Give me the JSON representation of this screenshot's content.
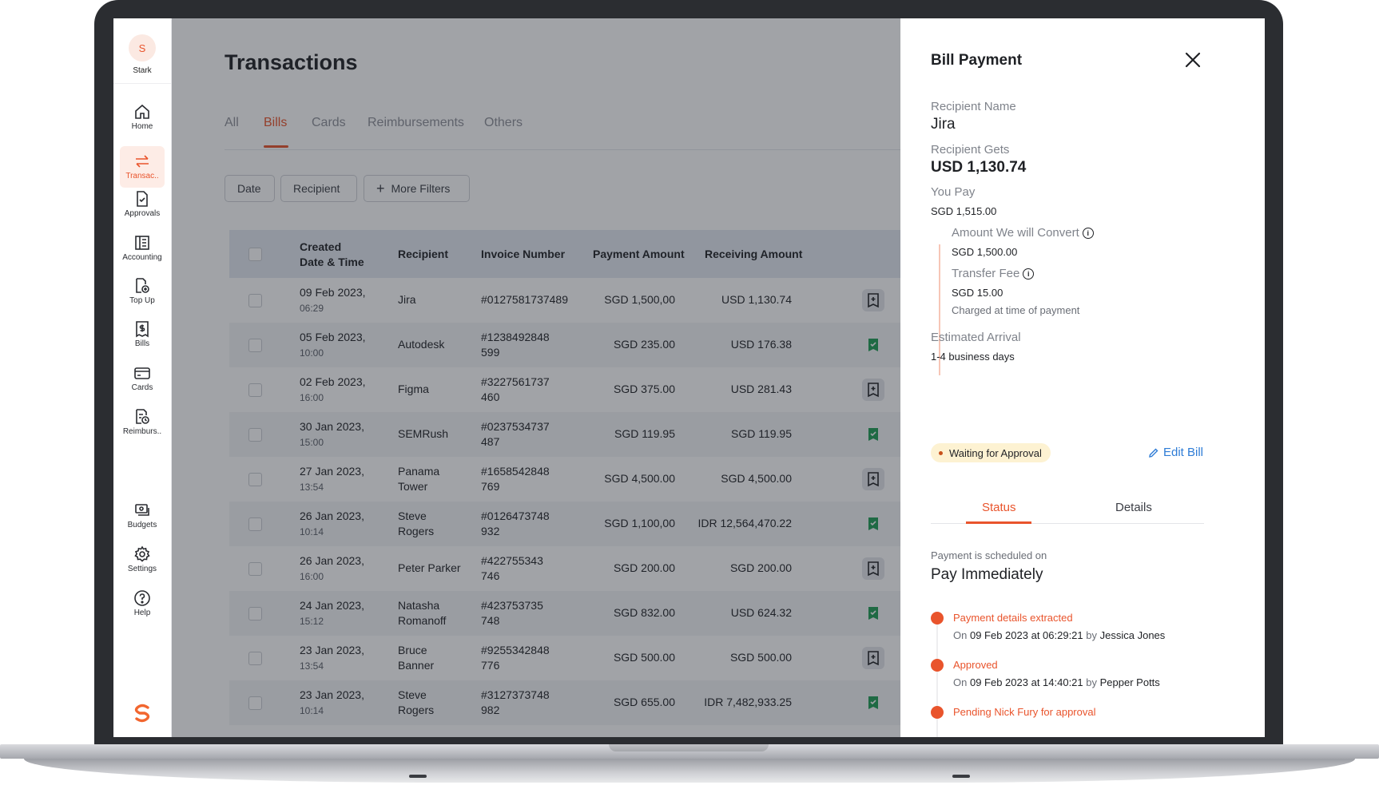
{
  "org": {
    "initial": "S",
    "name": "Stark"
  },
  "sidebar": {
    "items": [
      {
        "label": "Home",
        "icon": "home-icon"
      },
      {
        "label": "Transac..",
        "icon": "transfer-arrows-icon",
        "active": true
      },
      {
        "label": "Approvals",
        "icon": "approval-document-icon"
      },
      {
        "label": "Accounting",
        "icon": "ledger-icon"
      },
      {
        "label": "Top Up",
        "icon": "top-up-icon"
      },
      {
        "label": "Bills",
        "icon": "bill-icon"
      },
      {
        "label": "Cards",
        "icon": "card-icon"
      },
      {
        "label": "Reimburs..",
        "icon": "reimbursement-icon"
      }
    ],
    "bottom_items": [
      {
        "label": "Budgets",
        "icon": "budget-icon"
      },
      {
        "label": "Settings",
        "icon": "gear-icon"
      },
      {
        "label": "Help",
        "icon": "help-icon"
      }
    ]
  },
  "page": {
    "title": "Transactions"
  },
  "tabs": [
    {
      "label": "All"
    },
    {
      "label": "Bills",
      "active": true
    },
    {
      "label": "Cards"
    },
    {
      "label": "Reimbursements"
    },
    {
      "label": "Others"
    }
  ],
  "filters": {
    "date": "Date",
    "recipient": "Recipient",
    "more": "More Filters"
  },
  "table": {
    "headers": {
      "created_line1": "Created",
      "created_line2": "Date & Time",
      "recipient": "Recipient",
      "invoice": "Invoice Number",
      "payment": "Payment Amount",
      "receiving": "Receiving Amount"
    },
    "rows": [
      {
        "date": "09 Feb 2023,",
        "time": "06:29",
        "recipient": [
          "Jira"
        ],
        "invoice": [
          "#0127581737489"
        ],
        "payment": "SGD 1,500,00",
        "receiving": "USD 1,130.74",
        "status": "pending"
      },
      {
        "date": "05 Feb 2023,",
        "time": "10:00",
        "recipient": [
          "Autodesk"
        ],
        "invoice": [
          "#1238492848",
          "599"
        ],
        "payment": "SGD 235.00",
        "receiving": "USD 176.38",
        "status": "approved"
      },
      {
        "date": "02 Feb 2023,",
        "time": "16:00",
        "recipient": [
          "Figma"
        ],
        "invoice": [
          "#3227561737",
          "460"
        ],
        "payment": "SGD 375.00",
        "receiving": "USD 281.43",
        "status": "pending"
      },
      {
        "date": "30 Jan 2023,",
        "time": "15:00",
        "recipient": [
          "SEMRush"
        ],
        "invoice": [
          "#0237534737",
          "487"
        ],
        "payment": "SGD 119.95",
        "receiving": "SGD 119.95",
        "status": "approved"
      },
      {
        "date": "27 Jan 2023,",
        "time": "13:54",
        "recipient": [
          "Panama",
          "Tower"
        ],
        "invoice": [
          "#1658542848",
          "769"
        ],
        "payment": "SGD 4,500.00",
        "receiving": "SGD 4,500.00",
        "status": "pending"
      },
      {
        "date": "26 Jan 2023,",
        "time": "10:14",
        "recipient": [
          "Steve",
          "Rogers"
        ],
        "invoice": [
          "#0126473748",
          "932"
        ],
        "payment": "SGD 1,100,00",
        "receiving": "IDR 12,564,470.22",
        "status": "approved"
      },
      {
        "date": "26 Jan 2023,",
        "time": "16:00",
        "recipient": [
          "Peter Parker"
        ],
        "invoice": [
          "#422755343",
          "746"
        ],
        "payment": "SGD 200.00",
        "receiving": "SGD 200.00",
        "status": "pending"
      },
      {
        "date": "24 Jan 2023,",
        "time": "15:12",
        "recipient": [
          "Natasha",
          "Romanoff"
        ],
        "invoice": [
          "#423753735",
          "748"
        ],
        "payment": "SGD 832.00",
        "receiving": "USD 624.32",
        "status": "approved"
      },
      {
        "date": "23 Jan 2023,",
        "time": "13:54",
        "recipient": [
          "Bruce",
          "Banner"
        ],
        "invoice": [
          "#9255342848",
          "776"
        ],
        "payment": "SGD 500.00",
        "receiving": "SGD 500.00",
        "status": "pending"
      },
      {
        "date": "23 Jan 2023,",
        "time": "10:14",
        "recipient": [
          "Steve",
          "Rogers"
        ],
        "invoice": [
          "#3127373748",
          "982"
        ],
        "payment": "SGD 655.00",
        "receiving": "IDR 7,482,933.25",
        "status": "approved"
      }
    ]
  },
  "panel": {
    "title": "Bill Payment",
    "recipient_name_label": "Recipient Name",
    "recipient_name": "Jira",
    "recipient_gets_label": "Recipient Gets",
    "recipient_gets": "USD 1,130.74",
    "you_pay_label": "You Pay",
    "you_pay": "SGD 1,515.00",
    "convert_label": "Amount We will Convert",
    "convert_value": "SGD 1,500.00",
    "fee_label": "Transfer Fee",
    "fee_value": "SGD 15.00",
    "fee_note": "Charged at time of payment",
    "arrival_label": "Estimated Arrival",
    "arrival_value": "1-4 business days",
    "status_badge": "Waiting for Approval",
    "edit_label": "Edit Bill",
    "tabs": {
      "status": "Status",
      "details": "Details"
    },
    "scheduled_label": "Payment is scheduled on",
    "scheduled_value": "Pay Immediately",
    "timeline": [
      {
        "title": "Payment details extracted",
        "on": "On",
        "when": "09 Feb 2023 at 06:29:21",
        "by": "by",
        "who": "Jessica Jones"
      },
      {
        "title": "Approved",
        "on": "On",
        "when": "09 Feb 2023 at 14:40:21",
        "by": "by",
        "who": "Pepper Potts"
      },
      {
        "title": "Pending Nick Fury for approval"
      }
    ]
  },
  "colors": {
    "accent": "#e9542c",
    "link": "#2e7cd6",
    "approved": "#1f9d55",
    "badge_bg": "#fdf2d2"
  }
}
